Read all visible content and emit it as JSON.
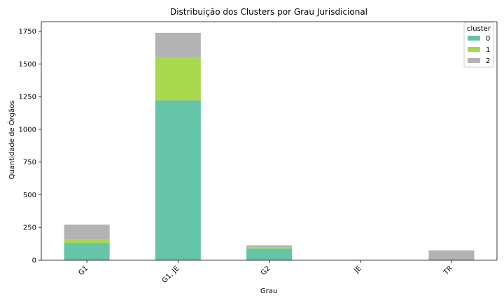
{
  "chart_data": {
    "type": "bar",
    "stacked": true,
    "title": "Distribuição dos Clusters por Grau Jurisdicional",
    "xlabel": "Grau",
    "ylabel": "Quantidade de Órgãos",
    "categories": [
      "G1",
      "G1, JE",
      "G2",
      "JE",
      "TR"
    ],
    "series": [
      {
        "name": "0",
        "color": "#66c5a8",
        "values": [
          133,
          1222,
          89,
          0,
          0
        ]
      },
      {
        "name": "1",
        "color": "#a8d84e",
        "values": [
          27,
          330,
          9,
          0,
          0
        ]
      },
      {
        "name": "2",
        "color": "#b3b3b3",
        "values": [
          112,
          186,
          16,
          0,
          75
        ]
      }
    ],
    "ylim": [
      0,
      1823
    ],
    "yticks": [
      0,
      250,
      500,
      750,
      1000,
      1250,
      1500,
      1750
    ],
    "ytick_labels": [
      "0",
      "250",
      "500",
      "750",
      "1000",
      "1250",
      "1500",
      "1750"
    ],
    "xtick_rotation": 45,
    "grid": false,
    "legend": {
      "title": "cluster",
      "placement": "top-right"
    }
  }
}
